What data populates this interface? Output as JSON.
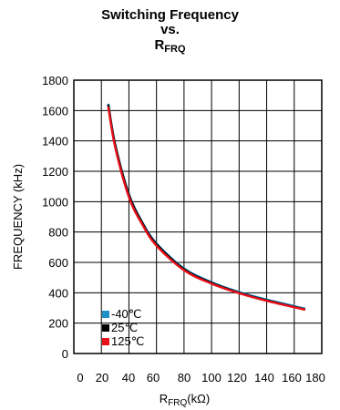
{
  "chart_data": {
    "type": "line",
    "title": {
      "line1": "Switching Frequency",
      "line2": "vs.",
      "line3_main": "R",
      "line3_sub": "FRQ"
    },
    "xlabel": {
      "main": "R",
      "sub": "FRQ",
      "unit": "(kΩ)"
    },
    "ylabel": "FREQUENCY (kHz)",
    "xlim": [
      0,
      180
    ],
    "ylim": [
      0,
      1800
    ],
    "xticks": [
      "0",
      "20",
      "40",
      "60",
      "80",
      "100",
      "120",
      "140",
      "160",
      "180"
    ],
    "yticks": [
      "0",
      "200",
      "400",
      "600",
      "800",
      "1000",
      "1200",
      "1400",
      "1600",
      "1800"
    ],
    "grid": true,
    "legend_position": "bottom-left",
    "series": [
      {
        "name": "-40℃",
        "color": "#1e90c8",
        "x": [
          25,
          30,
          40,
          50,
          60,
          80,
          100,
          120,
          140,
          168
        ],
        "y": [
          1645,
          1380,
          1050,
          860,
          725,
          560,
          470,
          405,
          355,
          295
        ]
      },
      {
        "name": "25℃",
        "color": "#000000",
        "x": [
          25,
          30,
          40,
          50,
          60,
          80,
          100,
          120,
          140,
          168
        ],
        "y": [
          1640,
          1375,
          1045,
          855,
          720,
          555,
          465,
          400,
          350,
          290
        ]
      },
      {
        "name": "125℃",
        "color": "#e8101a",
        "x": [
          25,
          30,
          40,
          50,
          60,
          80,
          100,
          120,
          140,
          168
        ],
        "y": [
          1625,
          1360,
          1030,
          845,
          710,
          548,
          460,
          397,
          347,
          288
        ]
      }
    ]
  }
}
